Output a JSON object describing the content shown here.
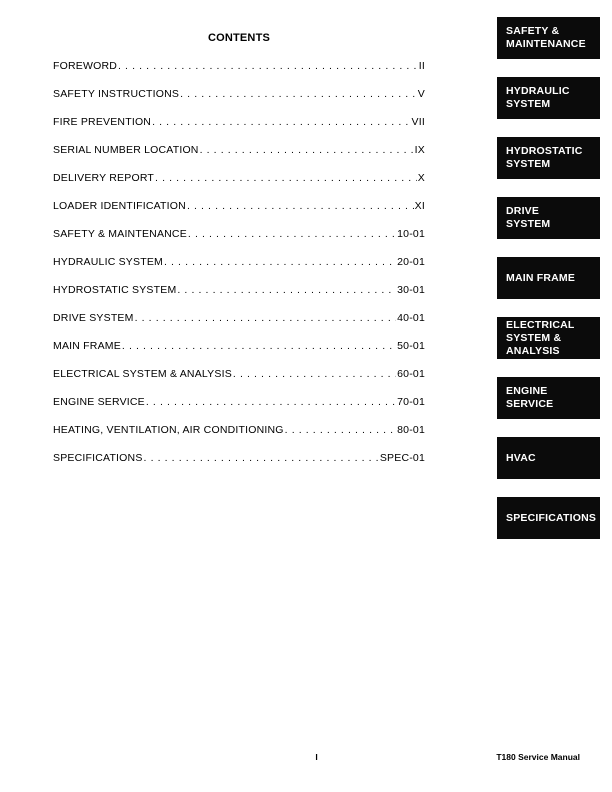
{
  "header": {
    "title": "CONTENTS"
  },
  "toc": {
    "entries": [
      {
        "label": "FOREWORD",
        "page": "II"
      },
      {
        "label": "SAFETY INSTRUCTIONS",
        "page": "V"
      },
      {
        "label": "FIRE PREVENTION",
        "page": "VII"
      },
      {
        "label": "SERIAL NUMBER LOCATION",
        "page": "IX"
      },
      {
        "label": "DELIVERY REPORT",
        "page": "X"
      },
      {
        "label": "LOADER IDENTIFICATION",
        "page": "XI"
      },
      {
        "label": "SAFETY & MAINTENANCE",
        "page": "10-01"
      },
      {
        "label": "HYDRAULIC SYSTEM",
        "page": "20-01"
      },
      {
        "label": "HYDROSTATIC SYSTEM",
        "page": "30-01"
      },
      {
        "label": "DRIVE SYSTEM",
        "page": "40-01"
      },
      {
        "label": "MAIN FRAME",
        "page": "50-01"
      },
      {
        "label": "ELECTRICAL SYSTEM & ANALYSIS",
        "page": "60-01"
      },
      {
        "label": "ENGINE SERVICE",
        "page": "70-01"
      },
      {
        "label": "HEATING, VENTILATION, AIR CONDITIONING",
        "page": "80-01"
      },
      {
        "label": "SPECIFICATIONS",
        "page": "SPEC-01"
      }
    ]
  },
  "tabs": {
    "items": [
      {
        "label": "SAFETY &\nMAINTENANCE"
      },
      {
        "label": "HYDRAULIC\nSYSTEM"
      },
      {
        "label": "HYDROSTATIC\nSYSTEM"
      },
      {
        "label": "DRIVE\nSYSTEM"
      },
      {
        "label": "MAIN FRAME"
      },
      {
        "label": "ELECTRICAL\nSYSTEM &\nANALYSIS"
      },
      {
        "label": "ENGINE\nSERVICE"
      },
      {
        "label": "HVAC"
      },
      {
        "label": "SPECIFICATIONS"
      }
    ]
  },
  "footer": {
    "page_number": "I",
    "manual_title": "T180 Service Manual"
  },
  "colors": {
    "page_bg": "#ffffff",
    "text": "#000000",
    "tab_bg": "#0b0b0b",
    "tab_text": "#ffffff"
  }
}
